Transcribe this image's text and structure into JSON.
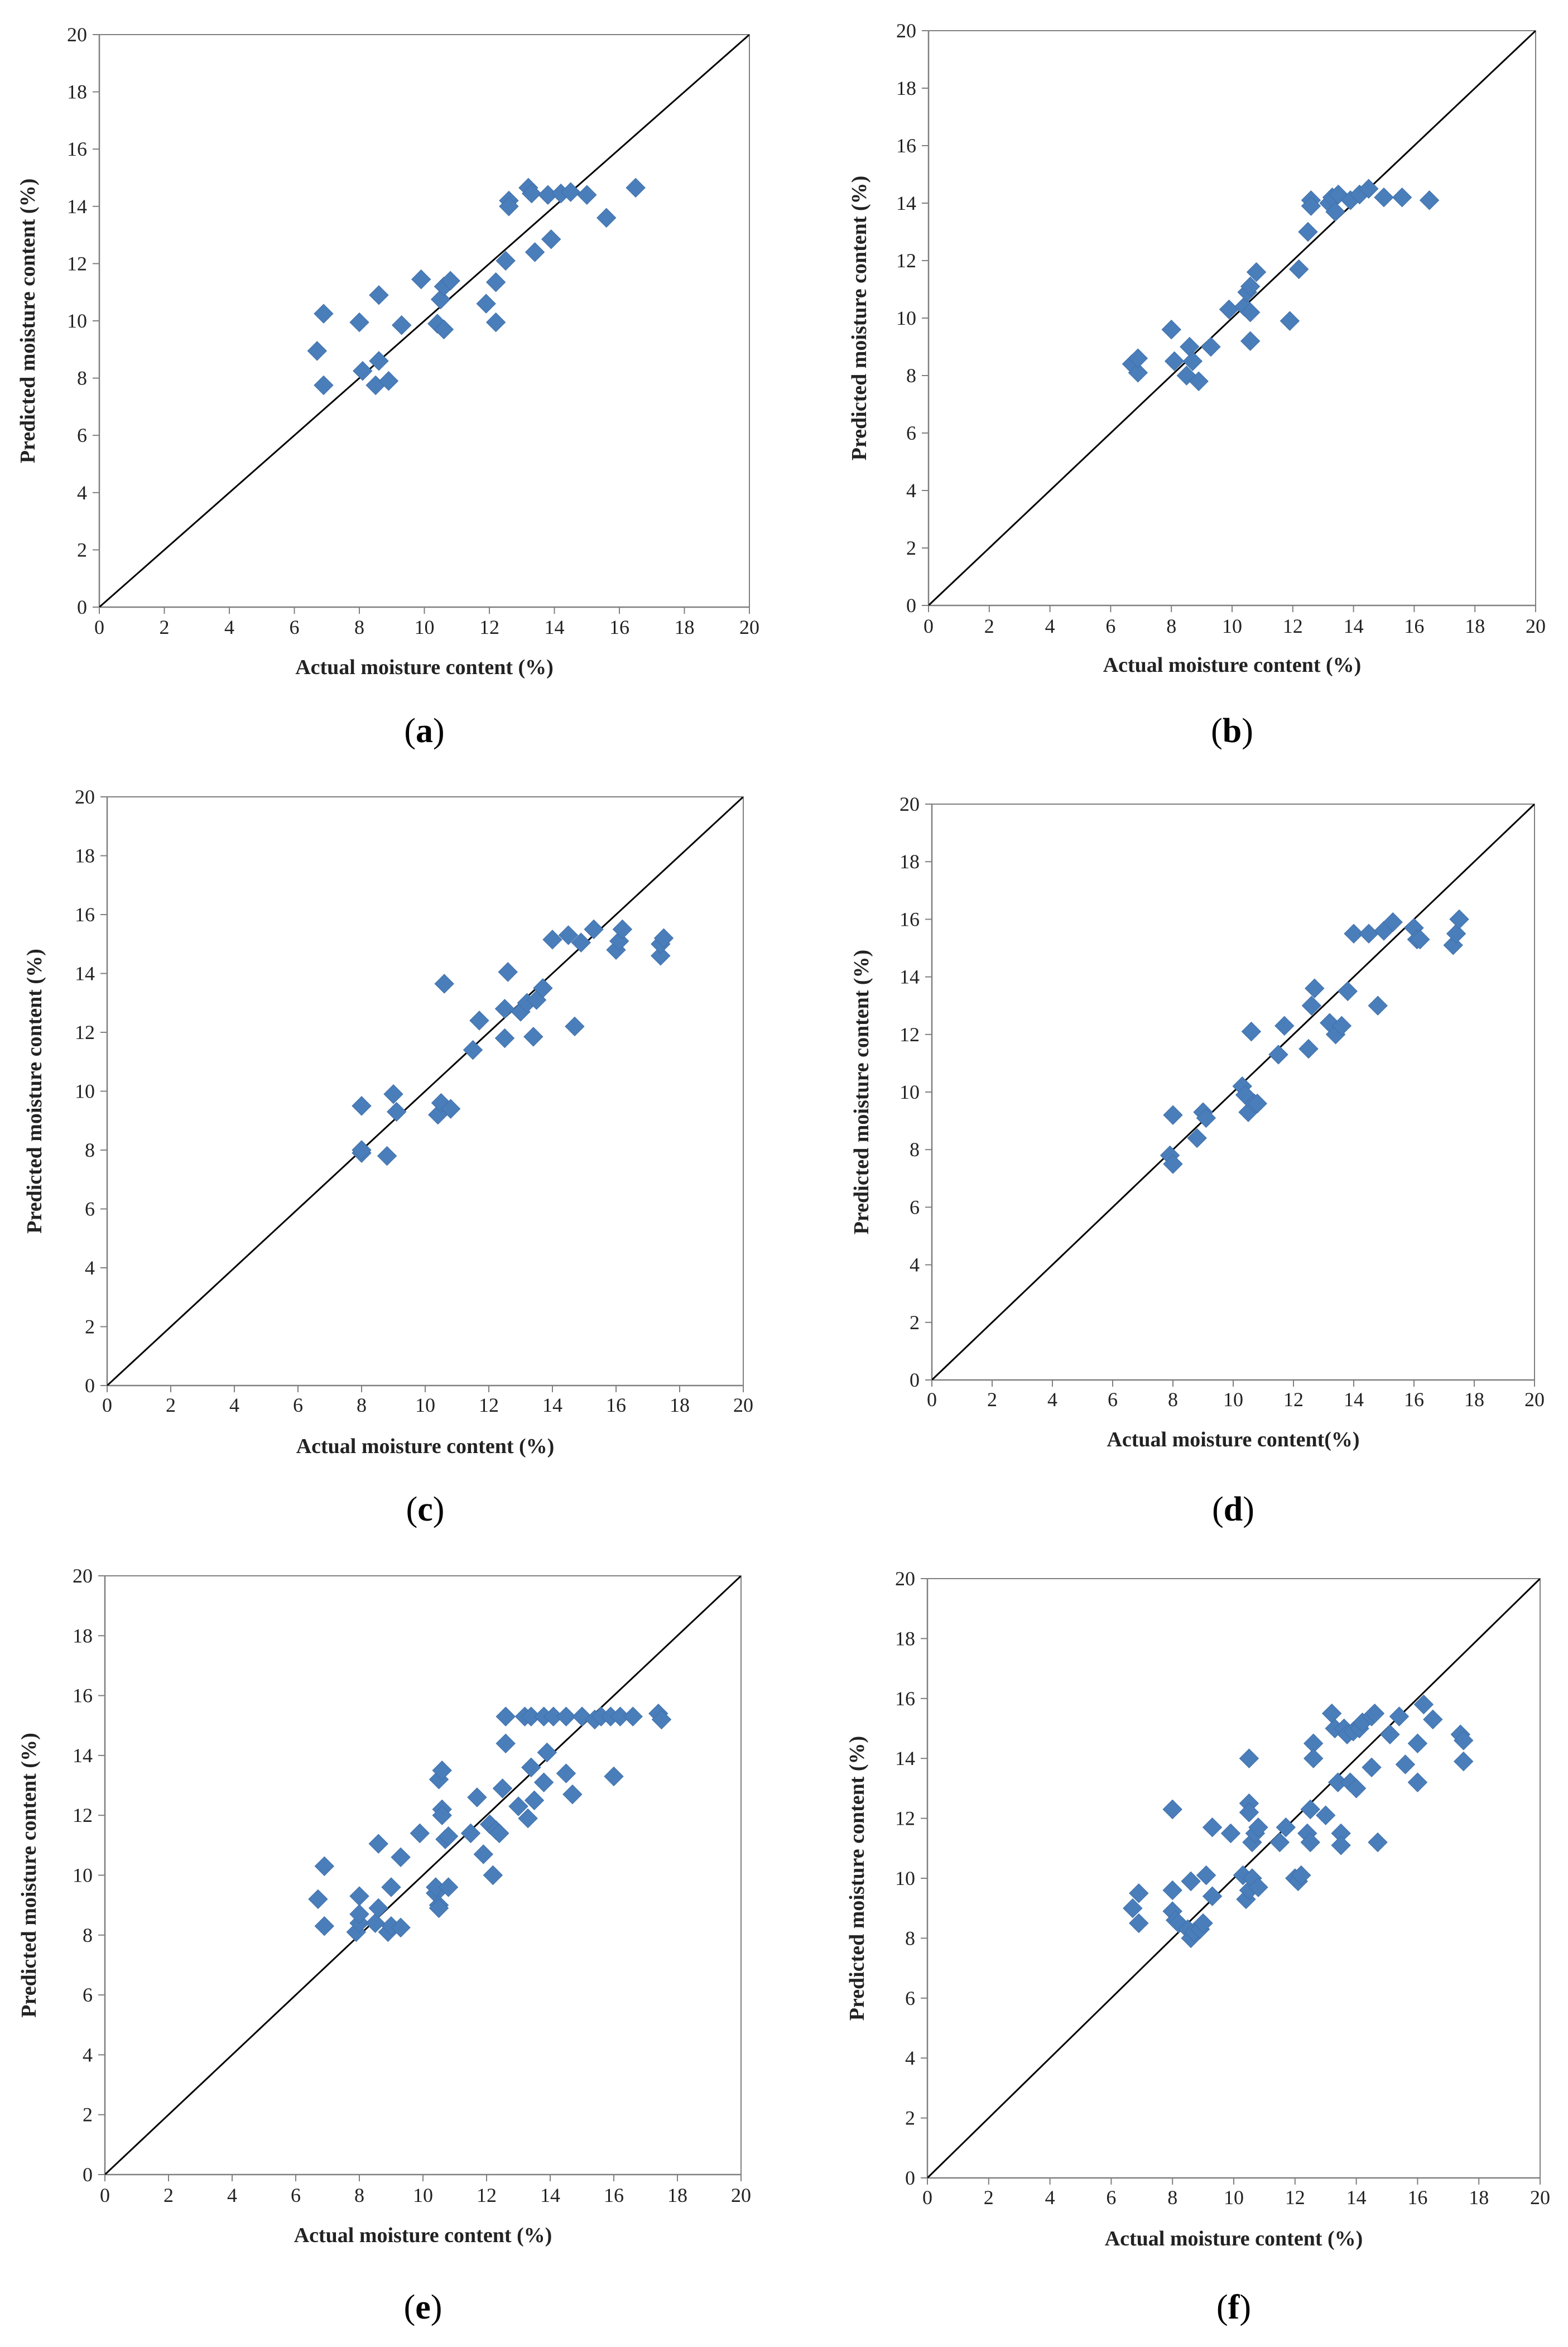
{
  "figure": {
    "panel_labels": [
      "a",
      "b",
      "c",
      "d",
      "e",
      "f"
    ]
  },
  "chart_data": [
    {
      "panel": "a",
      "type": "scatter",
      "xlabel": "Actual moisture content (%)",
      "ylabel": "Predicted moisture content (%)",
      "xlim": [
        0,
        20
      ],
      "ylim": [
        0,
        20
      ],
      "xticks": [
        0,
        2,
        4,
        6,
        8,
        10,
        12,
        14,
        16,
        18,
        20
      ],
      "yticks": [
        0,
        2,
        4,
        6,
        8,
        10,
        12,
        14,
        16,
        18,
        20
      ],
      "reference_line": "y = x",
      "marker_color": "#4a7ebb",
      "points": [
        [
          6.7,
          8.95
        ],
        [
          6.9,
          7.75
        ],
        [
          6.9,
          10.25
        ],
        [
          8.0,
          9.95
        ],
        [
          8.1,
          8.25
        ],
        [
          8.5,
          7.75
        ],
        [
          8.6,
          8.6
        ],
        [
          8.6,
          10.9
        ],
        [
          8.9,
          7.9
        ],
        [
          9.3,
          9.85
        ],
        [
          9.9,
          11.45
        ],
        [
          10.4,
          9.9
        ],
        [
          10.5,
          10.75
        ],
        [
          10.6,
          11.2
        ],
        [
          10.6,
          9.7
        ],
        [
          10.8,
          11.4
        ],
        [
          11.9,
          10.6
        ],
        [
          12.2,
          11.35
        ],
        [
          12.2,
          9.95
        ],
        [
          12.5,
          12.1
        ],
        [
          12.6,
          14.2
        ],
        [
          12.6,
          14.0
        ],
        [
          13.2,
          14.65
        ],
        [
          13.3,
          14.45
        ],
        [
          13.4,
          12.4
        ],
        [
          13.8,
          14.4
        ],
        [
          13.9,
          12.85
        ],
        [
          14.2,
          14.45
        ],
        [
          14.5,
          14.5
        ],
        [
          15.0,
          14.4
        ],
        [
          15.6,
          13.6
        ],
        [
          16.5,
          14.65
        ]
      ]
    },
    {
      "panel": "b",
      "type": "scatter",
      "xlabel": "Actual moisture content (%)",
      "ylabel": "Predicted moisture content (%)",
      "xlim": [
        0,
        20
      ],
      "ylim": [
        0,
        20
      ],
      "xticks": [
        0,
        2,
        4,
        6,
        8,
        10,
        12,
        14,
        16,
        18,
        20
      ],
      "yticks": [
        0,
        2,
        4,
        6,
        8,
        10,
        12,
        14,
        16,
        18,
        20
      ],
      "reference_line": "y = x",
      "marker_color": "#4a7ebb",
      "points": [
        [
          6.7,
          8.4
        ],
        [
          6.9,
          8.1
        ],
        [
          6.9,
          8.6
        ],
        [
          8.0,
          9.6
        ],
        [
          8.1,
          8.5
        ],
        [
          8.5,
          8.0
        ],
        [
          8.6,
          9.0
        ],
        [
          8.7,
          8.5
        ],
        [
          8.9,
          7.8
        ],
        [
          9.3,
          9.0
        ],
        [
          9.9,
          10.3
        ],
        [
          10.4,
          10.4
        ],
        [
          10.5,
          10.9
        ],
        [
          10.6,
          10.2
        ],
        [
          10.6,
          9.2
        ],
        [
          10.6,
          11.1
        ],
        [
          10.8,
          11.6
        ],
        [
          11.9,
          9.9
        ],
        [
          12.2,
          11.7
        ],
        [
          12.5,
          13.0
        ],
        [
          12.6,
          14.1
        ],
        [
          12.6,
          13.9
        ],
        [
          13.2,
          14.0
        ],
        [
          13.3,
          14.2
        ],
        [
          13.4,
          13.7
        ],
        [
          13.5,
          14.3
        ],
        [
          13.9,
          14.1
        ],
        [
          14.2,
          14.3
        ],
        [
          14.5,
          14.5
        ],
        [
          15.0,
          14.2
        ],
        [
          15.6,
          14.2
        ],
        [
          16.5,
          14.1
        ]
      ]
    },
    {
      "panel": "c",
      "type": "scatter",
      "xlabel": "Actual moisture content (%)",
      "ylabel": "Predicted moisture content (%)",
      "xlim": [
        0,
        20
      ],
      "ylim": [
        0,
        20
      ],
      "xticks": [
        0,
        2,
        4,
        6,
        8,
        10,
        12,
        14,
        16,
        18,
        20
      ],
      "yticks": [
        0,
        2,
        4,
        6,
        8,
        10,
        12,
        14,
        16,
        18,
        20
      ],
      "reference_line": "y = x",
      "marker_color": "#4a7ebb",
      "points": [
        [
          8.0,
          7.9
        ],
        [
          8.0,
          8.0
        ],
        [
          8.0,
          9.5
        ],
        [
          8.8,
          7.8
        ],
        [
          9.0,
          9.9
        ],
        [
          9.1,
          9.3
        ],
        [
          10.4,
          9.2
        ],
        [
          10.5,
          9.6
        ],
        [
          10.6,
          13.65
        ],
        [
          10.8,
          9.4
        ],
        [
          11.5,
          11.4
        ],
        [
          11.7,
          12.4
        ],
        [
          12.5,
          11.8
        ],
        [
          12.5,
          12.8
        ],
        [
          12.6,
          14.05
        ],
        [
          13.0,
          12.7
        ],
        [
          13.2,
          13.0
        ],
        [
          13.4,
          11.85
        ],
        [
          13.5,
          13.1
        ],
        [
          13.7,
          13.5
        ],
        [
          14.0,
          15.15
        ],
        [
          14.5,
          15.3
        ],
        [
          14.7,
          12.2
        ],
        [
          14.9,
          15.05
        ],
        [
          15.3,
          15.5
        ],
        [
          16.0,
          14.8
        ],
        [
          16.1,
          15.1
        ],
        [
          16.2,
          15.5
        ],
        [
          17.4,
          14.6
        ],
        [
          17.4,
          15.0
        ],
        [
          17.5,
          15.2
        ]
      ]
    },
    {
      "panel": "d",
      "type": "scatter",
      "xlabel": "Actual moisture content(%)",
      "ylabel": "Predicted moisture content (%)",
      "xlim": [
        0,
        20
      ],
      "ylim": [
        0,
        20
      ],
      "xticks": [
        0,
        2,
        4,
        6,
        8,
        10,
        12,
        14,
        16,
        18,
        20
      ],
      "yticks": [
        0,
        2,
        4,
        6,
        8,
        10,
        12,
        14,
        16,
        18,
        20
      ],
      "reference_line": "y = x",
      "marker_color": "#4a7ebb",
      "points": [
        [
          7.9,
          7.8
        ],
        [
          8.0,
          7.5
        ],
        [
          8.0,
          9.2
        ],
        [
          8.8,
          8.4
        ],
        [
          9.0,
          9.3
        ],
        [
          9.1,
          9.1
        ],
        [
          10.3,
          10.2
        ],
        [
          10.4,
          9.9
        ],
        [
          10.5,
          9.3
        ],
        [
          10.6,
          12.1
        ],
        [
          10.7,
          9.6
        ],
        [
          10.8,
          9.6
        ],
        [
          11.5,
          11.3
        ],
        [
          11.7,
          12.3
        ],
        [
          12.5,
          11.5
        ],
        [
          12.6,
          13.0
        ],
        [
          12.7,
          13.6
        ],
        [
          13.2,
          12.4
        ],
        [
          13.4,
          12.0
        ],
        [
          13.6,
          12.3
        ],
        [
          13.8,
          13.5
        ],
        [
          14.0,
          15.5
        ],
        [
          14.5,
          15.5
        ],
        [
          14.8,
          13.0
        ],
        [
          15.0,
          15.6
        ],
        [
          15.3,
          15.9
        ],
        [
          16.0,
          15.7
        ],
        [
          16.1,
          15.3
        ],
        [
          16.2,
          15.3
        ],
        [
          17.3,
          15.1
        ],
        [
          17.4,
          15.5
        ],
        [
          17.5,
          16.0
        ]
      ]
    },
    {
      "panel": "e",
      "type": "scatter",
      "xlabel": "Actual moisture content (%)",
      "ylabel": "Predicted moisture content (%)",
      "xlim": [
        0,
        20
      ],
      "ylim": [
        0,
        20
      ],
      "xticks": [
        0,
        2,
        4,
        6,
        8,
        10,
        12,
        14,
        16,
        18,
        20
      ],
      "yticks": [
        0,
        2,
        4,
        6,
        8,
        10,
        12,
        14,
        16,
        18,
        20
      ],
      "reference_line": "y = x",
      "marker_color": "#4a7ebb",
      "points": [
        [
          6.7,
          9.2
        ],
        [
          6.9,
          10.3
        ],
        [
          6.9,
          8.3
        ],
        [
          7.9,
          8.1
        ],
        [
          8.0,
          8.4
        ],
        [
          8.0,
          8.7
        ],
        [
          8.0,
          9.3
        ],
        [
          8.5,
          8.4
        ],
        [
          8.6,
          8.9
        ],
        [
          8.6,
          11.05
        ],
        [
          8.9,
          8.1
        ],
        [
          9.0,
          8.3
        ],
        [
          9.0,
          9.6
        ],
        [
          9.3,
          8.25
        ],
        [
          9.3,
          10.6
        ],
        [
          9.9,
          11.4
        ],
        [
          10.4,
          9.4
        ],
        [
          10.4,
          9.6
        ],
        [
          10.5,
          9.0
        ],
        [
          10.5,
          8.9
        ],
        [
          10.5,
          13.2
        ],
        [
          10.6,
          13.5
        ],
        [
          10.6,
          12.2
        ],
        [
          10.6,
          12.0
        ],
        [
          10.7,
          11.2
        ],
        [
          10.8,
          9.6
        ],
        [
          10.8,
          11.3
        ],
        [
          11.5,
          11.4
        ],
        [
          11.7,
          12.6
        ],
        [
          11.9,
          10.7
        ],
        [
          12.1,
          11.7
        ],
        [
          12.2,
          10.0
        ],
        [
          12.3,
          11.5
        ],
        [
          12.4,
          11.4
        ],
        [
          12.5,
          12.9
        ],
        [
          12.6,
          14.4
        ],
        [
          12.6,
          15.3
        ],
        [
          13.0,
          12.3
        ],
        [
          13.2,
          15.3
        ],
        [
          13.3,
          11.9
        ],
        [
          13.4,
          13.6
        ],
        [
          13.4,
          15.3
        ],
        [
          13.5,
          12.5
        ],
        [
          13.8,
          13.1
        ],
        [
          13.8,
          15.3
        ],
        [
          13.9,
          14.1
        ],
        [
          14.1,
          15.3
        ],
        [
          14.5,
          13.4
        ],
        [
          14.5,
          15.3
        ],
        [
          14.7,
          12.7
        ],
        [
          15.0,
          15.3
        ],
        [
          15.4,
          15.2
        ],
        [
          15.6,
          15.3
        ],
        [
          15.9,
          15.3
        ],
        [
          16.0,
          13.3
        ],
        [
          16.2,
          15.3
        ],
        [
          16.6,
          15.3
        ],
        [
          17.4,
          15.4
        ],
        [
          17.5,
          15.2
        ]
      ]
    },
    {
      "panel": "f",
      "type": "scatter",
      "xlabel": "Actual moisture content (%)",
      "ylabel": "Predicted moisture content (%)",
      "xlim": [
        0,
        20
      ],
      "ylim": [
        0,
        20
      ],
      "xticks": [
        0,
        2,
        4,
        6,
        8,
        10,
        12,
        14,
        16,
        18,
        20
      ],
      "yticks": [
        0,
        2,
        4,
        6,
        8,
        10,
        12,
        14,
        16,
        18,
        20
      ],
      "reference_line": "y = x",
      "marker_color": "#4a7ebb",
      "points": [
        [
          6.7,
          9.0
        ],
        [
          6.9,
          8.5
        ],
        [
          6.9,
          9.5
        ],
        [
          8.0,
          12.3
        ],
        [
          8.0,
          9.6
        ],
        [
          8.0,
          8.9
        ],
        [
          8.1,
          8.6
        ],
        [
          8.2,
          8.5
        ],
        [
          8.5,
          8.3
        ],
        [
          8.6,
          8.0
        ],
        [
          8.6,
          9.9
        ],
        [
          8.7,
          8.2
        ],
        [
          8.9,
          8.3
        ],
        [
          9.0,
          8.5
        ],
        [
          9.1,
          10.1
        ],
        [
          9.3,
          11.7
        ],
        [
          9.3,
          9.4
        ],
        [
          9.9,
          11.5
        ],
        [
          10.3,
          10.1
        ],
        [
          10.4,
          9.3
        ],
        [
          10.5,
          9.6
        ],
        [
          10.5,
          14.0
        ],
        [
          10.5,
          12.5
        ],
        [
          10.5,
          12.2
        ],
        [
          10.6,
          11.2
        ],
        [
          10.6,
          10.0
        ],
        [
          10.7,
          11.5
        ],
        [
          10.8,
          9.7
        ],
        [
          10.8,
          11.7
        ],
        [
          11.5,
          11.2
        ],
        [
          11.7,
          11.7
        ],
        [
          12.0,
          10.0
        ],
        [
          12.1,
          9.9
        ],
        [
          12.2,
          10.1
        ],
        [
          12.4,
          11.5
        ],
        [
          12.5,
          12.3
        ],
        [
          12.5,
          11.2
        ],
        [
          12.6,
          14.5
        ],
        [
          12.6,
          14.0
        ],
        [
          13.0,
          12.1
        ],
        [
          13.2,
          15.5
        ],
        [
          13.3,
          15.0
        ],
        [
          13.4,
          13.2
        ],
        [
          13.5,
          11.5
        ],
        [
          13.5,
          11.1
        ],
        [
          13.6,
          15.0
        ],
        [
          13.7,
          14.8
        ],
        [
          13.8,
          13.2
        ],
        [
          13.9,
          14.9
        ],
        [
          14.0,
          13.0
        ],
        [
          14.1,
          15.0
        ],
        [
          14.2,
          15.2
        ],
        [
          14.5,
          15.4
        ],
        [
          14.5,
          13.7
        ],
        [
          14.6,
          15.5
        ],
        [
          14.7,
          11.2
        ],
        [
          15.1,
          14.8
        ],
        [
          15.4,
          15.4
        ],
        [
          15.6,
          13.8
        ],
        [
          16.0,
          14.5
        ],
        [
          16.0,
          13.2
        ],
        [
          16.2,
          15.8
        ],
        [
          16.5,
          15.3
        ],
        [
          17.4,
          14.8
        ],
        [
          17.5,
          14.6
        ],
        [
          17.5,
          13.9
        ]
      ]
    }
  ]
}
